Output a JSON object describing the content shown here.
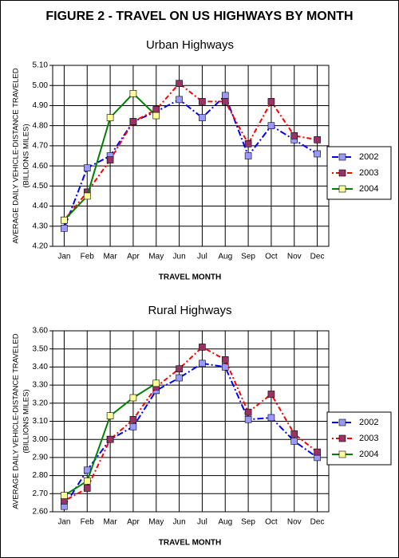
{
  "title": "FIGURE 2 - TRAVEL ON US HIGHWAYS BY MONTH",
  "chart_data": [
    {
      "type": "line",
      "title": "Urban Highways",
      "x_label": "TRAVEL MONTH",
      "y_label": [
        "AVERAGE DAILY VEHICLE-DISTANCE TRAVELED",
        "(BILLIONS MILES)"
      ],
      "categories": [
        "Jan",
        "Feb",
        "Mar",
        "Apr",
        "May",
        "Jun",
        "Jul",
        "Aug",
        "Sep",
        "Oct",
        "Nov",
        "Dec"
      ],
      "ylim": [
        4.2,
        5.1
      ],
      "yticks": [
        {
          "value": 4.2,
          "label": "4.20"
        },
        {
          "value": 4.3,
          "label": "4.30"
        },
        {
          "value": 4.4,
          "label": "4.40"
        },
        {
          "value": 4.5,
          "label": "4.50"
        },
        {
          "value": 4.6,
          "label": "4.60"
        },
        {
          "value": 4.7,
          "label": "4.70"
        },
        {
          "value": 4.8,
          "label": "4.80"
        },
        {
          "value": 4.9,
          "label": "4.90"
        },
        {
          "value": 5.0,
          "label": "5.00"
        },
        {
          "value": 5.1,
          "label": "5.10"
        }
      ],
      "grid": true,
      "legend": "right",
      "series": [
        {
          "name": "2002",
          "color": "#0000ff",
          "marker_color": "#9999ff",
          "line_style": "dash-dot",
          "values": [
            4.29,
            4.59,
            4.65,
            4.82,
            4.87,
            4.93,
            4.84,
            4.95,
            4.65,
            4.8,
            4.73,
            4.66
          ]
        },
        {
          "name": "2003",
          "color": "#ff0000",
          "marker_color": "#993366",
          "line_style": "dot-dash",
          "values": [
            4.33,
            4.47,
            4.63,
            4.82,
            4.88,
            5.01,
            4.92,
            4.92,
            4.71,
            4.92,
            4.75,
            4.73
          ]
        },
        {
          "name": "2004",
          "color": "#008000",
          "marker_color": "#ffff99",
          "line_style": "solid",
          "values": [
            4.33,
            4.45,
            4.84,
            4.96,
            4.85,
            null,
            null,
            null,
            null,
            null,
            null,
            null
          ]
        }
      ]
    },
    {
      "type": "line",
      "title": "Rural Highways",
      "x_label": "TRAVEL MONTH",
      "y_label": [
        "AVERAGE DAILY VEHICLE-DISTANCE TRAVELED",
        "(BILLIONS MILES)"
      ],
      "categories": [
        "Jan",
        "Feb",
        "Mar",
        "Apr",
        "May",
        "Jun",
        "Jul",
        "Aug",
        "Sep",
        "Oct",
        "Nov",
        "Dec"
      ],
      "ylim": [
        2.6,
        3.6
      ],
      "yticks": [
        {
          "value": 2.6,
          "label": "2.60"
        },
        {
          "value": 2.7,
          "label": "2.70"
        },
        {
          "value": 2.8,
          "label": "2.80"
        },
        {
          "value": 2.9,
          "label": "2.90"
        },
        {
          "value": 3.0,
          "label": "3.00"
        },
        {
          "value": 3.1,
          "label": "3.10"
        },
        {
          "value": 3.2,
          "label": "3.20"
        },
        {
          "value": 3.3,
          "label": "3.30"
        },
        {
          "value": 3.4,
          "label": "3.40"
        },
        {
          "value": 3.5,
          "label": "3.50"
        },
        {
          "value": 3.6,
          "label": "3.60"
        }
      ],
      "grid": true,
      "legend": "right",
      "series": [
        {
          "name": "2002",
          "color": "#0000ff",
          "marker_color": "#9999ff",
          "line_style": "dash-dot",
          "values": [
            2.63,
            2.83,
            3.0,
            3.07,
            3.27,
            3.34,
            3.42,
            3.4,
            3.11,
            3.12,
            2.99,
            2.9
          ]
        },
        {
          "name": "2003",
          "color": "#ff0000",
          "marker_color": "#993366",
          "line_style": "dot-dash",
          "values": [
            2.66,
            2.73,
            3.0,
            3.11,
            3.29,
            3.39,
            3.51,
            3.44,
            3.15,
            3.25,
            3.03,
            2.93
          ]
        },
        {
          "name": "2004",
          "color": "#008000",
          "marker_color": "#ffff99",
          "line_style": "solid",
          "values": [
            2.69,
            2.77,
            3.13,
            3.23,
            3.31,
            null,
            null,
            null,
            null,
            null,
            null,
            null
          ]
        }
      ]
    }
  ]
}
